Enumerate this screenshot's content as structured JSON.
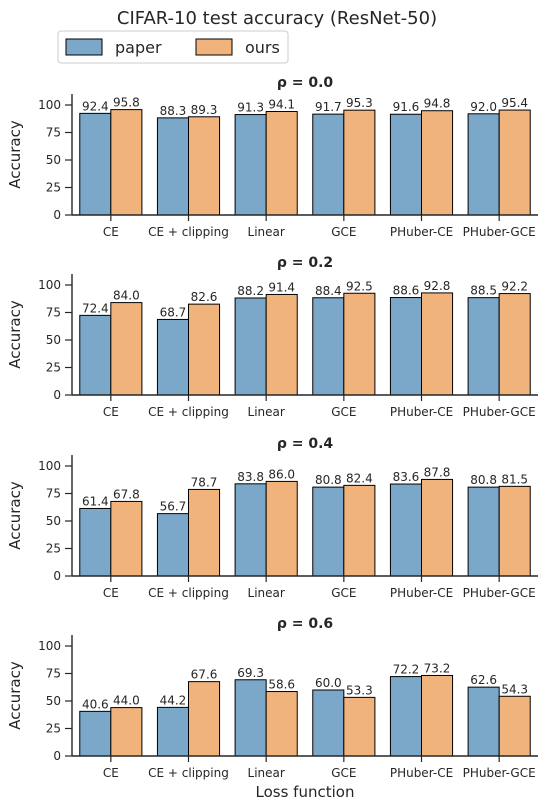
{
  "figure": {
    "suptitle": "CIFAR-10 test accuracy (ResNet-50)"
  },
  "legend": {
    "entries": [
      {
        "label": "paper",
        "color": "#7ba7c9"
      },
      {
        "label": "ours",
        "color": "#f0b37c"
      }
    ],
    "placement": "top-left"
  },
  "chart_data": [
    {
      "type": "bar",
      "title": "ρ = 0.0",
      "xlabel": "",
      "ylabel": "Accuracy",
      "ylim": [
        0,
        110
      ],
      "yticks": [
        0,
        25,
        50,
        75,
        100
      ],
      "categories": [
        "CE",
        "CE + clipping",
        "Linear",
        "GCE",
        "PHuber-CE",
        "PHuber-GCE"
      ],
      "series": [
        {
          "name": "paper",
          "color": "#7ba7c9",
          "values": [
            92.4,
            88.3,
            91.3,
            91.7,
            91.6,
            92.0
          ],
          "labels": [
            "92.4",
            "88.3",
            "91.3",
            "91.7",
            "91.6",
            "92.0"
          ]
        },
        {
          "name": "ours",
          "color": "#f0b37c",
          "values": [
            95.8,
            89.3,
            94.1,
            95.3,
            94.8,
            95.4
          ],
          "labels": [
            "95.8",
            "89.3",
            "94.1",
            "95.3",
            "94.8",
            "95.4"
          ]
        }
      ],
      "grid": false
    },
    {
      "type": "bar",
      "title": "ρ = 0.2",
      "xlabel": "",
      "ylabel": "Accuracy",
      "ylim": [
        0,
        110
      ],
      "yticks": [
        0,
        25,
        50,
        75,
        100
      ],
      "categories": [
        "CE",
        "CE + clipping",
        "Linear",
        "GCE",
        "PHuber-CE",
        "PHuber-GCE"
      ],
      "series": [
        {
          "name": "paper",
          "color": "#7ba7c9",
          "values": [
            72.4,
            68.7,
            88.2,
            88.4,
            88.6,
            88.5
          ],
          "labels": [
            "72.4",
            "68.7",
            "88.2",
            "88.4",
            "88.6",
            "88.5"
          ]
        },
        {
          "name": "ours",
          "color": "#f0b37c",
          "values": [
            84.0,
            82.6,
            91.4,
            92.5,
            92.8,
            92.2
          ],
          "labels": [
            "84.0",
            "82.6",
            "91.4",
            "92.5",
            "92.8",
            "92.2"
          ]
        }
      ],
      "grid": false
    },
    {
      "type": "bar",
      "title": "ρ = 0.4",
      "xlabel": "",
      "ylabel": "Accuracy",
      "ylim": [
        0,
        110
      ],
      "yticks": [
        0,
        25,
        50,
        75,
        100
      ],
      "categories": [
        "CE",
        "CE + clipping",
        "Linear",
        "GCE",
        "PHuber-CE",
        "PHuber-GCE"
      ],
      "series": [
        {
          "name": "paper",
          "color": "#7ba7c9",
          "values": [
            61.4,
            56.7,
            83.8,
            80.8,
            83.6,
            80.8
          ],
          "labels": [
            "61.4",
            "56.7",
            "83.8",
            "80.8",
            "83.6",
            "80.8"
          ]
        },
        {
          "name": "ours",
          "color": "#f0b37c",
          "values": [
            67.8,
            78.7,
            86.0,
            82.4,
            87.8,
            81.5
          ],
          "labels": [
            "67.8",
            "78.7",
            "86.0",
            "82.4",
            "87.8",
            "81.5"
          ]
        }
      ],
      "grid": false
    },
    {
      "type": "bar",
      "title": "ρ = 0.6",
      "xlabel": "Loss function",
      "ylabel": "Accuracy",
      "ylim": [
        0,
        110
      ],
      "yticks": [
        0,
        25,
        50,
        75,
        100
      ],
      "categories": [
        "CE",
        "CE + clipping",
        "Linear",
        "GCE",
        "PHuber-CE",
        "PHuber-GCE"
      ],
      "series": [
        {
          "name": "paper",
          "color": "#7ba7c9",
          "values": [
            40.6,
            44.2,
            69.3,
            60.0,
            72.2,
            62.6
          ],
          "labels": [
            "40.6",
            "44.2",
            "69.3",
            "60.0",
            "72.2",
            "62.6"
          ]
        },
        {
          "name": "ours",
          "color": "#f0b37c",
          "values": [
            44.0,
            67.6,
            58.6,
            53.3,
            73.2,
            54.3
          ],
          "labels": [
            "44.0",
            "67.6",
            "58.6",
            "53.3",
            "73.2",
            "54.3"
          ]
        }
      ],
      "grid": false
    }
  ]
}
